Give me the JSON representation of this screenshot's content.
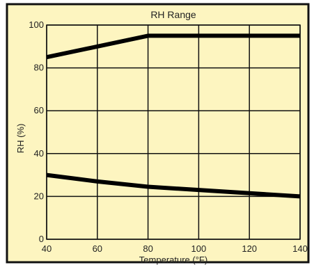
{
  "colors": {
    "plot_background": "#fdf5c0",
    "frame": "#111111",
    "grid": "#111111",
    "series": "#000000"
  },
  "chart_data": {
    "type": "line",
    "title": "RH Range",
    "xlabel": "Temperature (°F)",
    "ylabel": "RH (%)",
    "xlim": [
      40,
      140
    ],
    "ylim": [
      0,
      100
    ],
    "x_ticks": [
      40,
      60,
      80,
      100,
      120,
      140
    ],
    "y_ticks": [
      0,
      20,
      40,
      60,
      80,
      100
    ],
    "grid": true,
    "series": [
      {
        "x": [
          40,
          80,
          140
        ],
        "values": [
          85,
          95,
          95
        ]
      },
      {
        "x": [
          40,
          60,
          80,
          100,
          120,
          140
        ],
        "values": [
          30,
          27,
          24.5,
          23,
          21.5,
          20
        ]
      }
    ]
  }
}
